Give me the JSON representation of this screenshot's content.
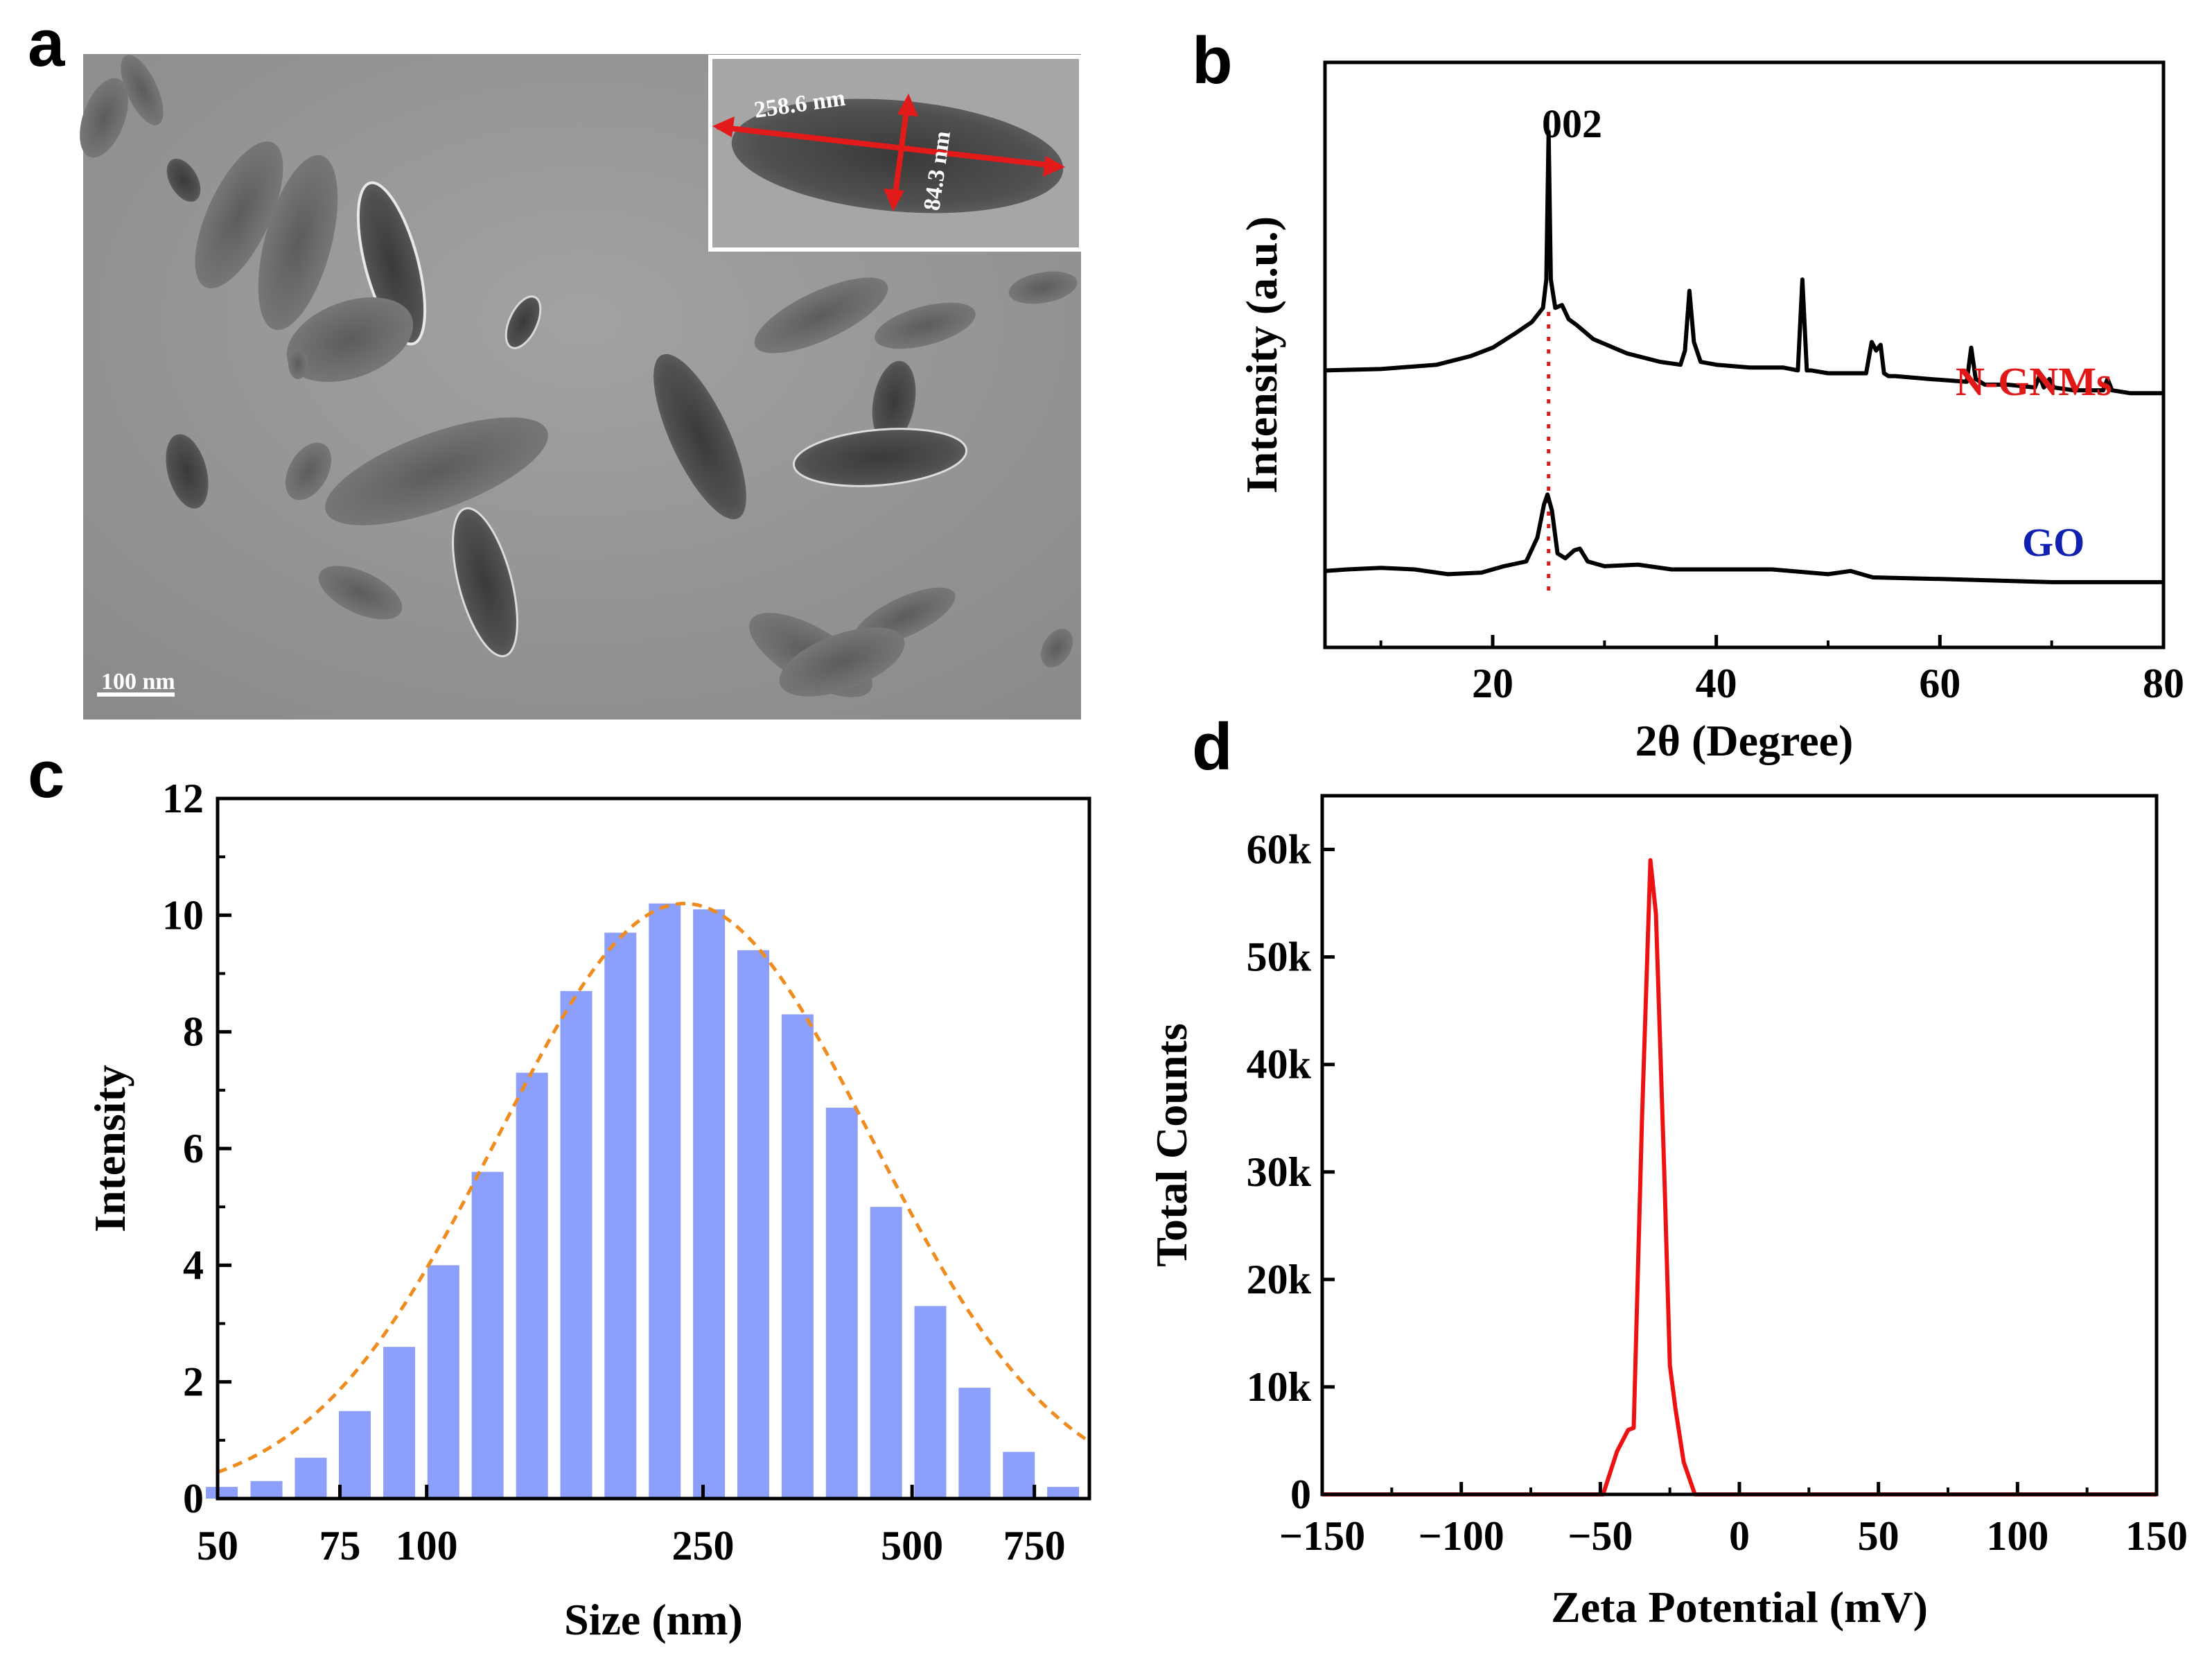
{
  "panels": {
    "a": {
      "label": "a",
      "scale_bar": "100 nm",
      "inset_length": "258.6 nm",
      "inset_width": "84.3 nm"
    },
    "b": {
      "label": "b"
    },
    "c": {
      "label": "c"
    },
    "d": {
      "label": "d"
    }
  },
  "colors": {
    "bar": "#8c9ffa",
    "fit": "#f08c1e",
    "ngnm_label": "#e01818",
    "go_label": "#1020b0",
    "zeta_line": "#ee1111",
    "ref_line": "#e01818",
    "arrow": "#e21a1a"
  },
  "chart_data": [
    {
      "panel": "b",
      "type": "line",
      "title": "",
      "xlabel": "2θ (Degree)",
      "ylabel": "Intensity (a.u.)",
      "xlim": [
        5,
        80
      ],
      "xticks": [
        20,
        40,
        60,
        80
      ],
      "peak_label": "002",
      "reference_line_x": 25,
      "series": [
        {
          "name": "N-GNMs",
          "x": [
            5,
            10,
            15,
            18,
            20,
            22,
            23.5,
            24.5,
            24.8,
            25.0,
            25.2,
            25.6,
            26.2,
            26.8,
            27.5,
            29,
            32,
            35,
            36.8,
            37.2,
            37.6,
            38,
            38.6,
            40,
            43,
            46,
            47.3,
            47.7,
            48.1,
            48.5,
            50,
            53.4,
            53.9,
            54.3,
            54.7,
            55,
            55.4,
            56,
            59,
            62.4,
            62.8,
            63.2,
            64,
            66,
            68.5,
            68.9,
            69.3,
            69.8,
            70.2,
            72,
            74.6,
            75,
            75.4,
            77,
            80
          ],
          "y": [
            16,
            16.5,
            18,
            21,
            24,
            29,
            33,
            38,
            48,
            100,
            48,
            38,
            39,
            34,
            32,
            27,
            22,
            19,
            18,
            23,
            44,
            26,
            19,
            18,
            17,
            17,
            16,
            48,
            16,
            16,
            15,
            15,
            26,
            23,
            25,
            15,
            14,
            14,
            13,
            12,
            24,
            13,
            11,
            11,
            10,
            14,
            10,
            13,
            10,
            9,
            9,
            13,
            9,
            8,
            8
          ]
        },
        {
          "name": "GO",
          "x": [
            5,
            7,
            10,
            13,
            16,
            19,
            21,
            23,
            24,
            24.6,
            24.9,
            25.3,
            25.8,
            26.5,
            27.3,
            27.8,
            28.5,
            30,
            33,
            36,
            40,
            45,
            50,
            52,
            54,
            60,
            70,
            80
          ],
          "y": [
            -6,
            -5,
            -4,
            -5,
            -8,
            -7,
            -3,
            0,
            15,
            36,
            42,
            32,
            5,
            2,
            7,
            8,
            0,
            -3,
            -2,
            -5,
            -5,
            -5,
            -8,
            -6,
            -10,
            -11,
            -13,
            -13
          ]
        }
      ]
    },
    {
      "panel": "c",
      "type": "bar",
      "title": "",
      "xlabel": "Size (nm)",
      "ylabel": "Intensity",
      "x_scale": "log",
      "xlim": [
        50,
        900
      ],
      "ylim": [
        0,
        12
      ],
      "yticks": [
        0,
        2,
        4,
        6,
        8,
        10,
        12
      ],
      "xticks": [
        50,
        75,
        100,
        250,
        500,
        750
      ],
      "categories": [
        50.7,
        58.8,
        68.1,
        78.8,
        91.3,
        105.7,
        122.4,
        141.8,
        164.2,
        190.1,
        220.2,
        255.0,
        295.3,
        342.0,
        396.1,
        458.7,
        531.2,
        615.1,
        712.4,
        825.0
      ],
      "values": [
        0.2,
        0.3,
        0.7,
        1.5,
        2.6,
        4.0,
        5.6,
        7.3,
        8.7,
        9.7,
        10.2,
        10.1,
        9.4,
        8.3,
        6.7,
        5.0,
        3.3,
        1.9,
        0.8,
        0.2
      ],
      "fit": {
        "type": "gaussian",
        "peak": 10.2,
        "center": 235,
        "sigma_ln": 0.62
      }
    },
    {
      "panel": "d",
      "type": "line",
      "title": "",
      "xlabel": "Zeta Potential (mV)",
      "ylabel": "Total Counts",
      "xlim": [
        -150,
        150
      ],
      "ylim": [
        0,
        65000
      ],
      "xticks": [
        -150,
        -100,
        -50,
        0,
        50,
        100,
        150
      ],
      "xticklabels": [
        "−150",
        "−100",
        "−50",
        "0",
        "50",
        "100",
        "150"
      ],
      "yticks": [
        0,
        10000,
        20000,
        30000,
        40000,
        50000,
        60000
      ],
      "yticklabels": [
        "0",
        "10k",
        "20k",
        "30k",
        "40k",
        "50k",
        "60k"
      ],
      "series": [
        {
          "name": "Zeta",
          "x": [
            -150,
            -49,
            -44,
            -40,
            -38,
            -35,
            -32,
            -30,
            -27,
            -25,
            -23,
            -20,
            -16,
            150
          ],
          "y": [
            0,
            0,
            4000,
            6000,
            6200,
            35000,
            59000,
            54000,
            30000,
            12000,
            8000,
            3000,
            0,
            0
          ]
        }
      ]
    }
  ]
}
